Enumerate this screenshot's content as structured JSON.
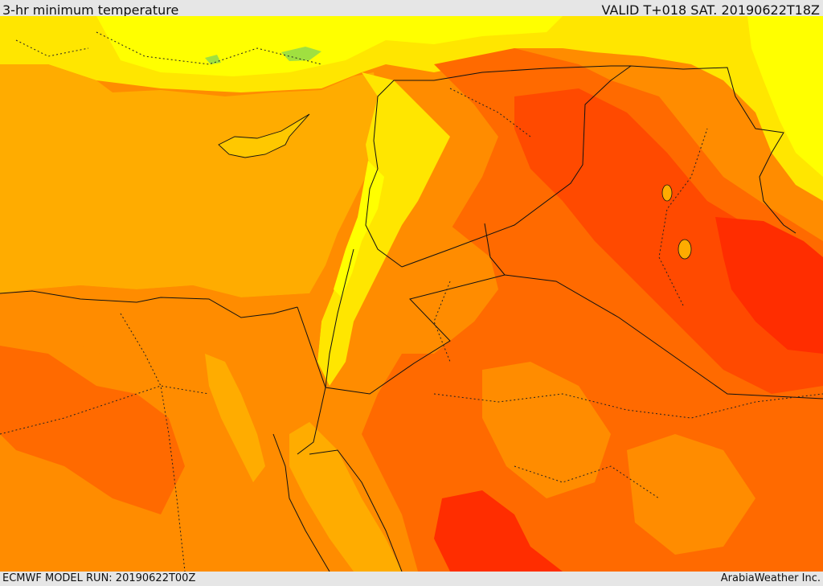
{
  "header": {
    "title": "3-hr minimum temperature",
    "valid": "VALID T+018 SAT. 20190622T18Z"
  },
  "footer": {
    "model_run": "ECMWF MODEL RUN: 20190622T00Z",
    "credit": "ArabiaWeather Inc."
  },
  "colors": {
    "sea": "#ffac00",
    "cool_yellow": "#ffff00",
    "light_yellow": "#ffe600",
    "orange": "#ff8c00",
    "deep_orange": "#ff6a00",
    "red_orange": "#ff4a00",
    "red": "#ff2d00",
    "green_patch": "#a0e040",
    "border_line": "#111111"
  },
  "map": {
    "field": "3-hr minimum temperature",
    "region": "Eastern Mediterranean / Levant / Egypt / Arabia"
  }
}
